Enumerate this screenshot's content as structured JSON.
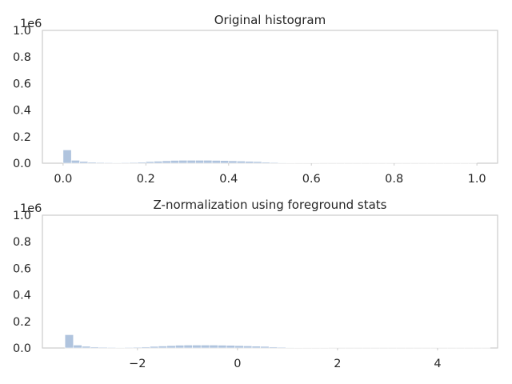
{
  "chart_data": [
    {
      "type": "bar",
      "title": "Original histogram",
      "offset_text": "1e6",
      "xlim": [
        -0.05,
        1.05
      ],
      "ylim": [
        0,
        1.0
      ],
      "xticks": [
        0.0,
        0.2,
        0.4,
        0.6,
        0.8,
        1.0
      ],
      "xtick_labels": [
        "0.0",
        "0.2",
        "0.4",
        "0.6",
        "0.8",
        "1.0"
      ],
      "yticks": [
        0.0,
        0.2,
        0.4,
        0.6,
        0.8,
        1.0
      ],
      "ytick_labels": [
        "0.0",
        "0.2",
        "0.4",
        "0.6",
        "0.8",
        "1.0"
      ],
      "bin_edges": [
        0.0,
        0.02,
        0.04,
        0.06,
        0.08,
        0.1,
        0.12,
        0.14,
        0.16,
        0.18,
        0.2,
        0.22,
        0.24,
        0.26,
        0.28,
        0.3,
        0.32,
        0.34,
        0.36,
        0.38,
        0.4,
        0.42,
        0.44,
        0.46,
        0.48,
        0.5,
        0.52,
        0.54,
        0.56,
        0.58,
        0.6,
        0.62,
        0.64,
        0.66,
        0.68,
        0.7,
        0.72,
        0.74,
        0.76,
        0.78,
        0.8,
        0.82,
        0.84,
        0.86,
        0.88,
        0.9,
        0.92,
        0.94,
        0.96,
        0.98,
        1.0
      ],
      "values": [
        0.1,
        0.022,
        0.013,
        0.008,
        0.006,
        0.005,
        0.004,
        0.005,
        0.006,
        0.008,
        0.012,
        0.015,
        0.018,
        0.021,
        0.022,
        0.022,
        0.022,
        0.022,
        0.021,
        0.02,
        0.018,
        0.016,
        0.014,
        0.012,
        0.008,
        0.006,
        0.004,
        0.003,
        0.002,
        0.002,
        0.002,
        0.001,
        0.001,
        0.001,
        0.001,
        0.001,
        0.001,
        0.001,
        0.001,
        0.001,
        0.001,
        0.001,
        0.001,
        0.001,
        0.001,
        0.001,
        0.001,
        0.001,
        0.001,
        0.001
      ],
      "bar_color": "#b0c4de",
      "grid": false
    },
    {
      "type": "bar",
      "title": "Z-normalization using foreground stats",
      "offset_text": "1e6",
      "xlim": [
        -3.9,
        5.2
      ],
      "ylim": [
        0,
        1.0
      ],
      "xticks": [
        -2,
        0,
        2,
        4
      ],
      "xtick_labels": [
        "−2",
        "0",
        "2",
        "4"
      ],
      "yticks": [
        0.0,
        0.2,
        0.4,
        0.6,
        0.8,
        1.0
      ],
      "ytick_labels": [
        "0.0",
        "0.2",
        "0.4",
        "0.6",
        "0.8",
        "1.0"
      ],
      "bin_edges": [
        -3.45,
        -3.28,
        -3.11,
        -2.94,
        -2.77,
        -2.6,
        -2.43,
        -2.26,
        -2.09,
        -1.92,
        -1.75,
        -1.58,
        -1.41,
        -1.24,
        -1.07,
        -0.9,
        -0.73,
        -0.56,
        -0.39,
        -0.22,
        -0.05,
        0.12,
        0.29,
        0.46,
        0.63,
        0.8,
        0.97,
        1.14,
        1.31,
        1.48,
        1.65,
        1.82,
        1.99,
        2.16,
        2.33,
        2.5,
        2.67,
        2.84,
        3.01,
        3.18,
        3.35,
        3.52,
        3.69,
        3.86,
        4.03,
        4.2,
        4.37,
        4.54,
        4.71,
        4.88,
        5.05
      ],
      "values": [
        0.1,
        0.022,
        0.013,
        0.008,
        0.006,
        0.005,
        0.004,
        0.005,
        0.006,
        0.008,
        0.012,
        0.015,
        0.018,
        0.021,
        0.022,
        0.022,
        0.022,
        0.022,
        0.021,
        0.02,
        0.018,
        0.016,
        0.014,
        0.012,
        0.008,
        0.006,
        0.004,
        0.003,
        0.002,
        0.002,
        0.002,
        0.001,
        0.001,
        0.001,
        0.001,
        0.001,
        0.001,
        0.001,
        0.001,
        0.001,
        0.001,
        0.001,
        0.001,
        0.001,
        0.001,
        0.001,
        0.001,
        0.001,
        0.001,
        0.001
      ],
      "bar_color": "#b0c4de",
      "grid": false
    }
  ]
}
